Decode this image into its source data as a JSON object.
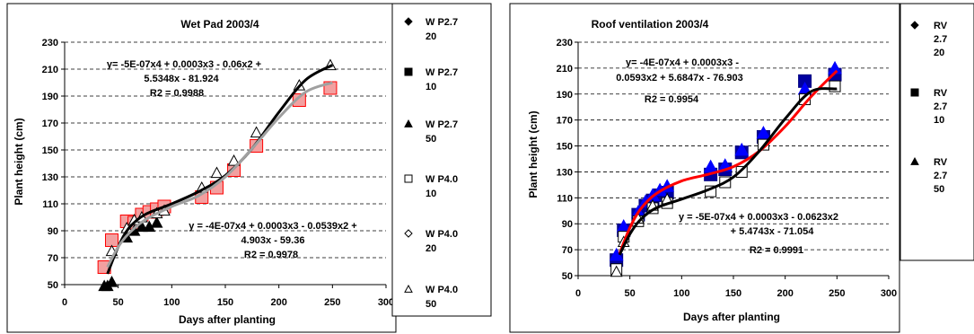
{
  "chart_data": [
    {
      "type": "scatter",
      "title": "Wet Pad 2003/4",
      "xlabel": "Days after planting",
      "ylabel": "Plant height (cm)",
      "xlim": [
        0,
        300
      ],
      "ylim": [
        50,
        230
      ],
      "x_ticks": [
        "0",
        "50",
        "100",
        "150",
        "200",
        "250",
        "300"
      ],
      "y_ticks": [
        "50",
        "70",
        "90",
        "110",
        "130",
        "150",
        "170",
        "190",
        "210",
        "230"
      ],
      "grid": "horizontal dashed",
      "legend_position": "right",
      "legend": [
        {
          "label": [
            "W P2.7",
            "20"
          ],
          "marker": "diamond-filled"
        },
        {
          "label": [
            "W P2.7",
            "10"
          ],
          "marker": "square-filled"
        },
        {
          "label": [
            "W P2.7",
            "50"
          ],
          "marker": "triangle-filled"
        },
        {
          "label": [
            "W P4.0",
            "10"
          ],
          "marker": "square-open"
        },
        {
          "label": [
            "W P4.0",
            "20"
          ],
          "marker": "diamond-open"
        },
        {
          "label": [
            "W P4.0",
            "50"
          ],
          "marker": "triangle-open"
        }
      ],
      "series": [
        {
          "marker": "square-red",
          "x": [
            37,
            44,
            58,
            65,
            72,
            79,
            86,
            93,
            128,
            142,
            158,
            179,
            219,
            248
          ],
          "y": [
            63,
            83,
            97,
            96,
            102,
            104,
            106,
            108,
            115,
            122,
            135,
            153,
            187,
            196
          ]
        },
        {
          "marker": "triangle-filled",
          "x": [
            37,
            40,
            44,
            58,
            65,
            72,
            79,
            86
          ],
          "y": [
            49,
            49,
            52,
            85,
            90,
            93,
            93,
            96
          ]
        },
        {
          "marker": "triangle-open",
          "x": [
            44,
            58,
            65,
            72,
            86,
            93,
            128,
            142,
            158,
            179,
            219,
            248
          ],
          "y": [
            75,
            92,
            98,
            100,
            103,
            105,
            122,
            133,
            142,
            163,
            198,
            213
          ]
        }
      ],
      "trendlines": [
        {
          "color": "#000000",
          "x": [
            40,
            50,
            60,
            75,
            100,
            125,
            150,
            175,
            200,
            225,
            250
          ],
          "y": [
            58,
            78,
            92,
            102,
            110,
            119,
            131,
            151,
            178,
            202,
            213
          ]
        },
        {
          "color": "#a0a0a0",
          "x": [
            40,
            50,
            60,
            75,
            100,
            125,
            150,
            175,
            200,
            225,
            250
          ],
          "y": [
            63,
            78,
            88,
            98,
            108,
            116,
            130,
            151,
            174,
            193,
            200
          ]
        }
      ],
      "annotations": [
        {
          "lines": [
            "y= -5E-07x4 + 0.0003x3 - 0.06x2 +",
            "5.5348x - 81.924",
            "R2 = 0.9988"
          ]
        },
        {
          "lines": [
            "y = -4E-07x4 + 0.0003x3 - 0.0539x2 +",
            "4.903x - 59.36",
            "R2 = 0.9978"
          ]
        }
      ]
    },
    {
      "type": "scatter",
      "title": "Roof ventilation 2003/4",
      "xlabel": "Days after planting",
      "ylabel": "Plant height (cm)",
      "xlim": [
        0,
        300
      ],
      "ylim": [
        50,
        230
      ],
      "x_ticks": [
        "0",
        "50",
        "100",
        "150",
        "200",
        "250",
        "300"
      ],
      "y_ticks": [
        "50",
        "70",
        "90",
        "110",
        "130",
        "150",
        "170",
        "190",
        "210",
        "230"
      ],
      "grid": "horizontal dashed",
      "legend_position": "right",
      "legend": [
        {
          "label": [
            "RV",
            "2.7",
            "20"
          ],
          "marker": "diamond-filled"
        },
        {
          "label": [
            "RV",
            "2.7",
            "10"
          ],
          "marker": "square-filled"
        },
        {
          "label": [
            "RV",
            "2.7",
            "50"
          ],
          "marker": "triangle-filled"
        }
      ],
      "series": [
        {
          "marker": "square-blue",
          "x": [
            37,
            44,
            58,
            65,
            72,
            79,
            86,
            128,
            142,
            158,
            179,
            219,
            248
          ],
          "y": [
            62,
            85,
            97,
            104,
            108,
            112,
            114,
            128,
            132,
            145,
            157,
            200,
            205
          ]
        },
        {
          "marker": "triangle-blue",
          "x": [
            37,
            44,
            58,
            65,
            72,
            79,
            86,
            128,
            142,
            158,
            179,
            219,
            248
          ],
          "y": [
            66,
            88,
            99,
            107,
            112,
            116,
            119,
            134,
            135,
            147,
            160,
            194,
            210
          ]
        },
        {
          "marker": "square-open",
          "x": [
            37,
            44,
            58,
            72,
            86,
            128,
            142,
            158,
            179,
            219,
            248
          ],
          "y": [
            55,
            80,
            92,
            102,
            106,
            115,
            122,
            130,
            151,
            186,
            196
          ]
        },
        {
          "marker": "triangle-open",
          "x": [
            37,
            44,
            58,
            72,
            86
          ],
          "y": [
            53,
            76,
            94,
            104,
            109
          ]
        }
      ],
      "trendlines": [
        {
          "color": "#ff0000",
          "x": [
            40,
            50,
            60,
            75,
            100,
            125,
            150,
            175,
            200,
            225,
            250
          ],
          "y": [
            67,
            87,
            101,
            113,
            123,
            128,
            134,
            146,
            165,
            188,
            208
          ]
        },
        {
          "color": "#000000",
          "x": [
            40,
            50,
            60,
            75,
            100,
            125,
            150,
            175,
            200,
            225,
            250
          ],
          "y": [
            66,
            82,
            93,
            102,
            109,
            116,
            126,
            146,
            171,
            192,
            194
          ]
        }
      ],
      "annotations": [
        {
          "lines": [
            "y= -4E-07x4 + 0.0003x3 -",
            "0.0593x2 + 5.6847x - 76.903",
            "R2 = 0.9954"
          ]
        },
        {
          "lines": [
            "y = -5E-07x4 + 0.0003x3 - 0.0623x2",
            "+ 5.4743x - 71.054",
            "R2 = 0.9991"
          ]
        }
      ]
    }
  ]
}
